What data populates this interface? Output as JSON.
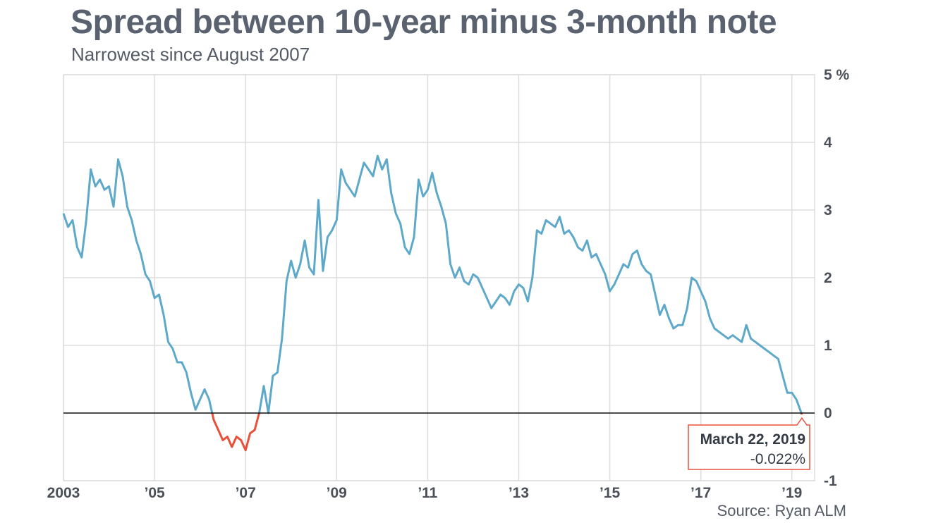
{
  "header": {
    "title": "Spread between 10-year minus 3-month note",
    "subtitle": "Narrowest since August 2007"
  },
  "footer": {
    "source": "Source: Ryan ALM"
  },
  "colors": {
    "positive": "#5ea9c9",
    "negative": "#e8503a",
    "grid": "#dddddd",
    "zero_line": "#111111",
    "callout_border": "#e8503a"
  },
  "chart_data": {
    "type": "line",
    "title": "Spread between 10-year minus 3-month note",
    "subtitle": "Narrowest since August 2007",
    "xlabel": "",
    "ylabel": "",
    "xlim": [
      2003.0,
      2019.5
    ],
    "ylim": [
      -1,
      5
    ],
    "y_ticks": [
      {
        "value": 5,
        "label": "5 %"
      },
      {
        "value": 4,
        "label": "4"
      },
      {
        "value": 3,
        "label": "3"
      },
      {
        "value": 2,
        "label": "2"
      },
      {
        "value": 1,
        "label": "1"
      },
      {
        "value": 0,
        "label": "0"
      },
      {
        "value": -1,
        "label": "-1"
      }
    ],
    "x_ticks": [
      {
        "value": 2003.0,
        "label": "2003"
      },
      {
        "value": 2005.0,
        "label": "’05"
      },
      {
        "value": 2007.0,
        "label": "’07"
      },
      {
        "value": 2009.0,
        "label": "’09"
      },
      {
        "value": 2011.0,
        "label": "’11"
      },
      {
        "value": 2013.0,
        "label": "’13"
      },
      {
        "value": 2015.0,
        "label": "’15"
      },
      {
        "value": 2017.0,
        "label": "’17"
      },
      {
        "value": 2019.0,
        "label": "’19"
      }
    ],
    "grid": true,
    "y_axis_side": "right",
    "coloring": "values below 0 drawn in red",
    "series": [
      {
        "x": [
          2003.0,
          2003.1,
          2003.2,
          2003.3,
          2003.4,
          2003.5,
          2003.6,
          2003.7,
          2003.8,
          2003.9,
          2004.0,
          2004.1,
          2004.2,
          2004.3,
          2004.4,
          2004.5,
          2004.6,
          2004.7,
          2004.8,
          2004.9,
          2005.0,
          2005.1,
          2005.2,
          2005.3,
          2005.4,
          2005.5,
          2005.6,
          2005.7,
          2005.8,
          2005.9,
          2006.0,
          2006.1,
          2006.2,
          2006.3,
          2006.4,
          2006.5,
          2006.6,
          2006.7,
          2006.8,
          2006.9,
          2007.0,
          2007.1,
          2007.2,
          2007.3,
          2007.4,
          2007.5,
          2007.6,
          2007.7,
          2007.8,
          2007.9,
          2008.0,
          2008.1,
          2008.2,
          2008.3,
          2008.4,
          2008.5,
          2008.6,
          2008.7,
          2008.8,
          2008.9,
          2009.0,
          2009.1,
          2009.2,
          2009.3,
          2009.4,
          2009.5,
          2009.6,
          2009.7,
          2009.8,
          2009.9,
          2010.0,
          2010.1,
          2010.2,
          2010.3,
          2010.4,
          2010.5,
          2010.6,
          2010.7,
          2010.8,
          2010.9,
          2011.0,
          2011.1,
          2011.2,
          2011.3,
          2011.4,
          2011.5,
          2011.6,
          2011.7,
          2011.8,
          2011.9,
          2012.0,
          2012.1,
          2012.2,
          2012.3,
          2012.4,
          2012.5,
          2012.6,
          2012.7,
          2012.8,
          2012.9,
          2013.0,
          2013.1,
          2013.2,
          2013.3,
          2013.4,
          2013.5,
          2013.6,
          2013.7,
          2013.8,
          2013.9,
          2014.0,
          2014.1,
          2014.2,
          2014.3,
          2014.4,
          2014.5,
          2014.6,
          2014.7,
          2014.8,
          2014.9,
          2015.0,
          2015.1,
          2015.2,
          2015.3,
          2015.4,
          2015.5,
          2015.6,
          2015.7,
          2015.8,
          2015.9,
          2016.0,
          2016.1,
          2016.2,
          2016.3,
          2016.4,
          2016.5,
          2016.6,
          2016.7,
          2016.8,
          2016.9,
          2017.0,
          2017.1,
          2017.2,
          2017.3,
          2017.4,
          2017.5,
          2017.6,
          2017.7,
          2017.8,
          2017.9,
          2018.0,
          2018.1,
          2018.2,
          2018.3,
          2018.4,
          2018.5,
          2018.6,
          2018.7,
          2018.8,
          2018.9,
          2019.0,
          2019.1,
          2019.22
        ],
        "y": [
          2.95,
          2.75,
          2.85,
          2.45,
          2.3,
          2.85,
          3.6,
          3.35,
          3.45,
          3.3,
          3.35,
          3.05,
          3.75,
          3.5,
          3.05,
          2.85,
          2.55,
          2.35,
          2.05,
          1.95,
          1.7,
          1.75,
          1.45,
          1.05,
          0.95,
          0.75,
          0.75,
          0.6,
          0.3,
          0.05,
          0.2,
          0.35,
          0.2,
          -0.1,
          -0.25,
          -0.4,
          -0.35,
          -0.5,
          -0.35,
          -0.4,
          -0.55,
          -0.3,
          -0.25,
          0.0,
          0.4,
          0.0,
          0.55,
          0.6,
          1.1,
          1.95,
          2.25,
          2.0,
          2.2,
          2.55,
          2.15,
          2.05,
          3.15,
          2.1,
          2.6,
          2.7,
          2.85,
          3.6,
          3.4,
          3.3,
          3.2,
          3.45,
          3.7,
          3.6,
          3.5,
          3.8,
          3.6,
          3.75,
          3.25,
          2.95,
          2.8,
          2.45,
          2.35,
          2.6,
          3.45,
          3.2,
          3.3,
          3.55,
          3.25,
          3.05,
          2.8,
          2.2,
          2.0,
          2.15,
          1.95,
          1.9,
          2.05,
          2.0,
          1.85,
          1.7,
          1.55,
          1.65,
          1.75,
          1.7,
          1.6,
          1.8,
          1.9,
          1.85,
          1.65,
          2.0,
          2.7,
          2.65,
          2.85,
          2.8,
          2.75,
          2.9,
          2.65,
          2.7,
          2.6,
          2.45,
          2.4,
          2.55,
          2.3,
          2.35,
          2.2,
          2.05,
          1.8,
          1.9,
          2.05,
          2.2,
          2.15,
          2.35,
          2.4,
          2.2,
          2.1,
          2.05,
          1.75,
          1.45,
          1.6,
          1.4,
          1.25,
          1.3,
          1.3,
          1.55,
          2.0,
          1.95,
          1.8,
          1.65,
          1.4,
          1.25,
          1.2,
          1.15,
          1.1,
          1.15,
          1.1,
          1.05,
          1.3,
          1.1,
          1.05,
          1.0,
          0.95,
          0.9,
          0.85,
          0.8,
          0.55,
          0.3,
          0.3,
          0.2,
          -0.022
        ]
      }
    ],
    "annotations": [
      {
        "x": 2019.22,
        "y": -0.022,
        "date_label": "March 22, 2019",
        "value_label": "-0.022%"
      }
    ]
  }
}
